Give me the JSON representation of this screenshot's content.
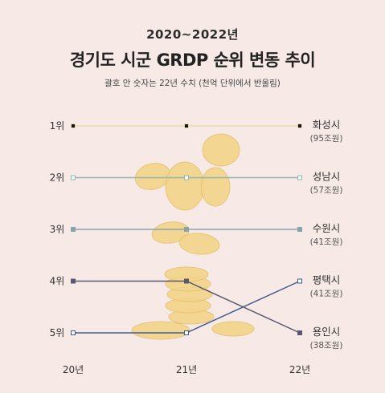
{
  "header": {
    "year_range": "2020~2022년",
    "title": "경기도 시군 GRDP 순위 변동 추이",
    "subtitle": "괄호 안 숫자는 22년 수치 (천억 단위에서 반올림)"
  },
  "colors": {
    "background": "#f7e9e6",
    "hwaseong": "#e9dcae",
    "seongnam": "#8fb6b0",
    "suwon": "#8aa3ad",
    "pyeongtaek": "#3d5e8c",
    "yongin": "#5a5870",
    "coins": "#f2d48a"
  },
  "chart_data": {
    "type": "line",
    "title": "경기도 시군 GRDP 순위 변동 추이",
    "x": [
      "20년",
      "21년",
      "22년"
    ],
    "y_categories": [
      "1위",
      "2위",
      "3위",
      "4위",
      "5위"
    ],
    "y_inverted": true,
    "series": [
      {
        "name": "화성시",
        "ranks": [
          1,
          1,
          1
        ],
        "value_22": "(95조원)",
        "color": "#e9dcae",
        "marker": "#111111"
      },
      {
        "name": "성남시",
        "ranks": [
          2,
          2,
          2
        ],
        "value_22": "(57조원)",
        "color": "#8fb6b0",
        "marker": "#ffffff"
      },
      {
        "name": "수원시",
        "ranks": [
          3,
          3,
          3
        ],
        "value_22": "(41조원)",
        "color": "#8aa3ad",
        "marker": "#8aa3ad"
      },
      {
        "name": "평택시",
        "ranks": [
          5,
          5,
          4
        ],
        "value_22": "(41조원)",
        "color": "#3d5e8c",
        "marker": "#ffffff"
      },
      {
        "name": "용인시",
        "ranks": [
          4,
          4,
          5
        ],
        "value_22": "(38조원)",
        "color": "#5a5870",
        "marker": "#5a5870"
      }
    ]
  }
}
